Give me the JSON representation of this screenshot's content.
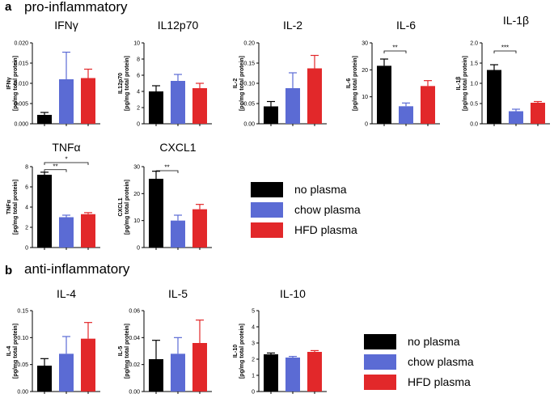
{
  "colors": {
    "no_plasma": "#000000",
    "chow_plasma": "#5b6bd4",
    "hfd_plasma": "#e2282a"
  },
  "panels": {
    "a": {
      "letter": "a",
      "title": "pro-inflammatory"
    },
    "b": {
      "letter": "b",
      "title": "anti-inflammatory"
    }
  },
  "legends": {
    "a": [
      "no plasma",
      "chow plasma",
      "HFD plasma"
    ],
    "b": [
      "no plasma",
      "chow plasma",
      "HFD plasma"
    ]
  },
  "chart_data": [
    {
      "id": "ifng",
      "type": "bar",
      "title": "IFNγ",
      "ylabel": "IFNγ",
      "unit_label": "[pg/mg total protein]",
      "categories": [
        "no plasma",
        "chow plasma",
        "HFD plasma"
      ],
      "values": [
        0.0022,
        0.011,
        0.0113
      ],
      "errors": [
        0.0006,
        0.0067,
        0.0022
      ],
      "ylim": [
        0,
        0.02
      ],
      "yticks": [
        "0.000",
        "0.005",
        "0.010",
        "0.015",
        "0.020"
      ],
      "significance": []
    },
    {
      "id": "il12p70",
      "type": "bar",
      "title": "IL12p70",
      "ylabel": "IL12p70",
      "unit_label": "[pg/mg total protein]",
      "categories": [
        "no plasma",
        "chow plasma",
        "HFD plasma"
      ],
      "values": [
        4.0,
        5.3,
        4.4
      ],
      "errors": [
        0.7,
        0.8,
        0.6
      ],
      "ylim": [
        0,
        10
      ],
      "yticks": [
        "0",
        "2",
        "4",
        "6",
        "8",
        "10"
      ],
      "significance": []
    },
    {
      "id": "il2",
      "type": "bar",
      "title": "IL-2",
      "ylabel": "IL-2",
      "unit_label": "[pg/mg total protein]",
      "categories": [
        "no plasma",
        "chow plasma",
        "HFD plasma"
      ],
      "values": [
        0.043,
        0.088,
        0.137
      ],
      "errors": [
        0.012,
        0.038,
        0.032
      ],
      "ylim": [
        0,
        0.2
      ],
      "yticks": [
        "0.00",
        "0.05",
        "0.10",
        "0.15",
        "0.20"
      ],
      "significance": []
    },
    {
      "id": "il6",
      "type": "bar",
      "title": "IL-6",
      "ylabel": "IL-6",
      "unit_label": "[pg/mg total protein]",
      "categories": [
        "no plasma",
        "chow plasma",
        "HFD plasma"
      ],
      "values": [
        21.5,
        6.5,
        14.0
      ],
      "errors": [
        2.5,
        1.2,
        2.0
      ],
      "ylim": [
        0,
        30
      ],
      "yticks": [
        "0",
        "10",
        "20",
        "30"
      ],
      "significance": [
        {
          "from": 0,
          "to": 1,
          "label": "**",
          "y": 27
        }
      ]
    },
    {
      "id": "il1b",
      "type": "bar",
      "title": "IL-1β",
      "ylabel": "IL-1β",
      "unit_label": "[pg/mg total protein]",
      "categories": [
        "no plasma",
        "chow plasma",
        "HFD plasma"
      ],
      "values": [
        1.33,
        0.31,
        0.52
      ],
      "errors": [
        0.13,
        0.05,
        0.03
      ],
      "ylim": [
        0,
        2.0
      ],
      "yticks": [
        "0.0",
        "0.5",
        "1.0",
        "1.5",
        "2.0"
      ],
      "significance": [
        {
          "from": 0,
          "to": 1,
          "label": "***",
          "y": 1.8
        }
      ]
    },
    {
      "id": "tnfa",
      "type": "bar",
      "title": "TNFα",
      "ylabel": "TNFα",
      "unit_label": "[pg/mg total protein]",
      "categories": [
        "no plasma",
        "chow plasma",
        "HFD plasma"
      ],
      "values": [
        7.2,
        3.0,
        3.3
      ],
      "errors": [
        0.25,
        0.2,
        0.15
      ],
      "ylim": [
        0,
        8
      ],
      "yticks": [
        "0",
        "2",
        "4",
        "6",
        "8"
      ],
      "significance": [
        {
          "from": 0,
          "to": 1,
          "label": "**",
          "y": 7.7
        },
        {
          "from": 0,
          "to": 2,
          "label": "*",
          "y": 8.4
        }
      ]
    },
    {
      "id": "cxcl1",
      "type": "bar",
      "title": "CXCL1",
      "ylabel": "CXCL1",
      "unit_label": "[pg/mg total protein]",
      "categories": [
        "no plasma",
        "chow plasma",
        "HFD plasma"
      ],
      "values": [
        25.5,
        10.0,
        14.2
      ],
      "errors": [
        2.8,
        2.0,
        1.8
      ],
      "ylim": [
        0,
        30
      ],
      "yticks": [
        "0",
        "10",
        "20",
        "30"
      ],
      "significance": [
        {
          "from": 0,
          "to": 1,
          "label": "**",
          "y": 28.5
        }
      ]
    },
    {
      "id": "il4",
      "type": "bar",
      "title": "IL-4",
      "ylabel": "IL-4",
      "unit_label": "[pg/mg total protein]",
      "categories": [
        "no plasma",
        "chow plasma",
        "HFD plasma"
      ],
      "values": [
        0.048,
        0.07,
        0.098
      ],
      "errors": [
        0.013,
        0.032,
        0.03
      ],
      "ylim": [
        0,
        0.15
      ],
      "yticks": [
        "0.00",
        "0.05",
        "0.10",
        "0.15"
      ],
      "significance": []
    },
    {
      "id": "il5",
      "type": "bar",
      "title": "IL-5",
      "ylabel": "IL-5",
      "unit_label": "[pg/mg total protein]",
      "categories": [
        "no plasma",
        "chow plasma",
        "HFD plasma"
      ],
      "values": [
        0.024,
        0.028,
        0.036
      ],
      "errors": [
        0.014,
        0.012,
        0.017
      ],
      "ylim": [
        0,
        0.06
      ],
      "yticks": [
        "0.00",
        "0.02",
        "0.04",
        "0.06"
      ],
      "significance": []
    },
    {
      "id": "il10",
      "type": "bar",
      "title": "IL-10",
      "ylabel": "IL-10",
      "unit_label": "[pg/mg total protein]",
      "categories": [
        "no plasma",
        "chow plasma",
        "HFD plasma"
      ],
      "values": [
        2.3,
        2.1,
        2.45
      ],
      "errors": [
        0.08,
        0.07,
        0.08
      ],
      "ylim": [
        0,
        5
      ],
      "yticks": [
        "0",
        "1",
        "2",
        "3",
        "4",
        "5"
      ],
      "significance": []
    }
  ]
}
